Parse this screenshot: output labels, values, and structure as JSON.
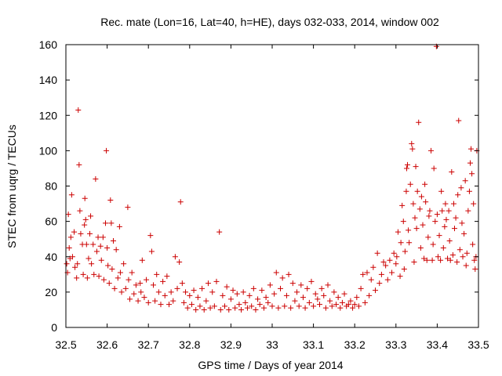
{
  "chart_data": {
    "type": "scatter",
    "title": "Rec. mate (Lon=16, Lat=40, h=HE), days 032-033, 2014, window 002",
    "xlabel": "GPS time / Days of year 2014",
    "ylabel": "STEC from uqrg / TECUs",
    "xlim": [
      32.5,
      33.5
    ],
    "ylim": [
      0,
      160
    ],
    "xticks": [
      32.5,
      32.6,
      32.7,
      32.8,
      32.9,
      33.0,
      33.1,
      33.2,
      33.3,
      33.4,
      33.5
    ],
    "xtick_labels": [
      "32.5",
      "32.6",
      "32.7",
      "32.8",
      "32.9",
      "33",
      "33.1",
      "33.2",
      "33.3",
      "33.4",
      "33.5"
    ],
    "yticks": [
      0,
      20,
      40,
      60,
      80,
      100,
      120,
      140,
      160
    ],
    "ytick_labels": [
      "0",
      "20",
      "40",
      "60",
      "80",
      "100",
      "120",
      "140",
      "160"
    ],
    "grid": false,
    "marker": "+",
    "series": [
      {
        "name": "STEC",
        "color": "#cc0000",
        "points": [
          [
            32.502,
            36
          ],
          [
            32.504,
            31
          ],
          [
            32.506,
            64
          ],
          [
            32.508,
            45
          ],
          [
            32.51,
            39
          ],
          [
            32.512,
            51
          ],
          [
            32.514,
            75
          ],
          [
            32.516,
            40
          ],
          [
            32.52,
            54
          ],
          [
            32.522,
            34
          ],
          [
            32.526,
            28
          ],
          [
            32.528,
            36
          ],
          [
            32.53,
            123
          ],
          [
            32.532,
            92
          ],
          [
            32.534,
            66
          ],
          [
            32.536,
            53
          ],
          [
            32.54,
            47
          ],
          [
            32.542,
            30
          ],
          [
            32.545,
            58
          ],
          [
            32.546,
            73
          ],
          [
            32.548,
            61
          ],
          [
            32.55,
            47
          ],
          [
            32.552,
            28
          ],
          [
            32.555,
            39
          ],
          [
            32.558,
            53
          ],
          [
            32.56,
            63
          ],
          [
            32.562,
            36
          ],
          [
            32.566,
            47
          ],
          [
            32.568,
            30
          ],
          [
            32.572,
            84
          ],
          [
            32.575,
            43
          ],
          [
            32.578,
            51
          ],
          [
            32.58,
            29
          ],
          [
            32.584,
            46
          ],
          [
            32.586,
            38
          ],
          [
            32.59,
            51
          ],
          [
            32.592,
            27
          ],
          [
            32.596,
            59
          ],
          [
            32.598,
            100
          ],
          [
            32.6,
            45
          ],
          [
            32.602,
            35
          ],
          [
            32.605,
            25
          ],
          [
            32.608,
            72
          ],
          [
            32.61,
            59
          ],
          [
            32.612,
            33
          ],
          [
            32.615,
            49
          ],
          [
            32.618,
            22
          ],
          [
            32.622,
            44
          ],
          [
            32.626,
            28
          ],
          [
            32.63,
            57
          ],
          [
            32.632,
            31
          ],
          [
            32.635,
            20
          ],
          [
            32.64,
            36
          ],
          [
            32.645,
            22
          ],
          [
            32.65,
            68
          ],
          [
            32.652,
            27
          ],
          [
            32.655,
            16
          ],
          [
            32.66,
            31
          ],
          [
            32.665,
            19
          ],
          [
            32.67,
            24
          ],
          [
            32.675,
            15
          ],
          [
            32.68,
            25
          ],
          [
            32.682,
            20
          ],
          [
            32.685,
            38
          ],
          [
            32.69,
            17
          ],
          [
            32.695,
            27
          ],
          [
            32.7,
            14
          ],
          [
            32.705,
            52
          ],
          [
            32.708,
            43
          ],
          [
            32.712,
            24
          ],
          [
            32.716,
            15
          ],
          [
            32.72,
            30
          ],
          [
            32.725,
            20
          ],
          [
            32.73,
            13
          ],
          [
            32.735,
            26
          ],
          [
            32.74,
            18
          ],
          [
            32.745,
            29
          ],
          [
            32.75,
            13
          ],
          [
            32.755,
            20
          ],
          [
            32.76,
            15
          ],
          [
            32.765,
            40
          ],
          [
            32.77,
            22
          ],
          [
            32.775,
            37
          ],
          [
            32.778,
            71
          ],
          [
            32.782,
            25
          ],
          [
            32.786,
            14
          ],
          [
            32.79,
            20
          ],
          [
            32.795,
            11
          ],
          [
            32.8,
            18
          ],
          [
            32.805,
            13
          ],
          [
            32.81,
            21
          ],
          [
            32.815,
            10
          ],
          [
            32.82,
            17
          ],
          [
            32.825,
            12
          ],
          [
            32.83,
            22
          ],
          [
            32.835,
            10
          ],
          [
            32.84,
            15
          ],
          [
            32.845,
            25
          ],
          [
            32.85,
            11
          ],
          [
            32.855,
            20
          ],
          [
            32.86,
            12
          ],
          [
            32.865,
            26
          ],
          [
            32.872,
            54
          ],
          [
            32.875,
            10
          ],
          [
            32.88,
            18
          ],
          [
            32.885,
            12
          ],
          [
            32.89,
            23
          ],
          [
            32.895,
            10
          ],
          [
            32.9,
            16
          ],
          [
            32.905,
            21
          ],
          [
            32.91,
            11
          ],
          [
            32.915,
            19
          ],
          [
            32.92,
            13
          ],
          [
            32.925,
            10
          ],
          [
            32.93,
            20
          ],
          [
            32.935,
            14
          ],
          [
            32.94,
            11
          ],
          [
            32.945,
            18
          ],
          [
            32.95,
            12
          ],
          [
            32.955,
            22
          ],
          [
            32.96,
            10
          ],
          [
            32.965,
            16
          ],
          [
            32.97,
            13
          ],
          [
            32.975,
            21
          ],
          [
            32.98,
            11
          ],
          [
            32.985,
            17
          ],
          [
            32.99,
            14
          ],
          [
            32.995,
            24
          ],
          [
            33.0,
            12
          ],
          [
            33.005,
            19
          ],
          [
            33.01,
            31
          ],
          [
            33.015,
            11
          ],
          [
            33.02,
            22
          ],
          [
            33.025,
            28
          ],
          [
            33.03,
            12
          ],
          [
            33.035,
            18
          ],
          [
            33.04,
            30
          ],
          [
            33.045,
            11
          ],
          [
            33.05,
            25
          ],
          [
            33.055,
            15
          ],
          [
            33.06,
            20
          ],
          [
            33.065,
            12
          ],
          [
            33.07,
            24
          ],
          [
            33.075,
            17
          ],
          [
            33.08,
            11
          ],
          [
            33.085,
            22
          ],
          [
            33.09,
            14
          ],
          [
            33.095,
            26
          ],
          [
            33.1,
            12
          ],
          [
            33.105,
            19
          ],
          [
            33.11,
            16
          ],
          [
            33.115,
            13
          ],
          [
            33.12,
            22
          ],
          [
            33.125,
            18
          ],
          [
            33.13,
            11
          ],
          [
            33.135,
            24
          ],
          [
            33.14,
            15
          ],
          [
            33.145,
            12
          ],
          [
            33.15,
            20
          ],
          [
            33.155,
            13
          ],
          [
            33.16,
            17
          ],
          [
            33.165,
            11
          ],
          [
            33.17,
            14
          ],
          [
            33.175,
            19
          ],
          [
            33.18,
            12
          ],
          [
            33.185,
            13
          ],
          [
            33.19,
            15
          ],
          [
            33.195,
            11
          ],
          [
            33.2,
            13
          ],
          [
            33.205,
            17
          ],
          [
            33.21,
            12
          ],
          [
            33.215,
            22
          ],
          [
            33.22,
            30
          ],
          [
            33.225,
            14
          ],
          [
            33.23,
            31
          ],
          [
            33.235,
            18
          ],
          [
            33.24,
            27
          ],
          [
            33.245,
            34
          ],
          [
            33.25,
            21
          ],
          [
            33.255,
            42
          ],
          [
            33.26,
            25
          ],
          [
            33.265,
            30
          ],
          [
            33.27,
            37
          ],
          [
            33.275,
            35
          ],
          [
            33.28,
            27
          ],
          [
            33.285,
            38
          ],
          [
            33.29,
            31
          ],
          [
            33.295,
            42
          ],
          [
            33.3,
            36
          ],
          [
            33.302,
            40
          ],
          [
            33.305,
            54
          ],
          [
            33.31,
            29
          ],
          [
            33.312,
            48
          ],
          [
            33.315,
            69
          ],
          [
            33.318,
            60
          ],
          [
            33.32,
            33
          ],
          [
            33.322,
            43
          ],
          [
            33.325,
            77
          ],
          [
            33.326,
            90
          ],
          [
            33.328,
            92
          ],
          [
            33.33,
            55
          ],
          [
            33.332,
            48
          ],
          [
            33.335,
            81
          ],
          [
            33.338,
            104
          ],
          [
            33.34,
            101
          ],
          [
            33.342,
            70
          ],
          [
            33.344,
            37
          ],
          [
            33.346,
            62
          ],
          [
            33.348,
            91
          ],
          [
            33.35,
            56
          ],
          [
            33.352,
            77
          ],
          [
            33.355,
            116
          ],
          [
            33.358,
            67
          ],
          [
            33.36,
            45
          ],
          [
            33.362,
            74
          ],
          [
            33.365,
            58
          ],
          [
            33.368,
            39
          ],
          [
            33.37,
            81
          ],
          [
            33.372,
            71
          ],
          [
            33.375,
            38
          ],
          [
            33.378,
            51
          ],
          [
            33.38,
            63
          ],
          [
            33.382,
            66
          ],
          [
            33.385,
            100
          ],
          [
            33.388,
            38
          ],
          [
            33.39,
            47
          ],
          [
            33.392,
            90
          ],
          [
            33.395,
            60
          ],
          [
            33.398,
            159
          ],
          [
            33.4,
            64
          ],
          [
            33.402,
            40
          ],
          [
            33.405,
            52
          ],
          [
            33.408,
            38
          ],
          [
            33.41,
            77
          ],
          [
            33.412,
            66
          ],
          [
            33.415,
            45
          ],
          [
            33.418,
            57
          ],
          [
            33.42,
            70
          ],
          [
            33.422,
            61
          ],
          [
            33.425,
            39
          ],
          [
            33.428,
            66
          ],
          [
            33.43,
            49
          ],
          [
            33.432,
            38
          ],
          [
            33.435,
            88
          ],
          [
            33.438,
            41
          ],
          [
            33.44,
            70
          ],
          [
            33.442,
            56
          ],
          [
            33.445,
            62
          ],
          [
            33.448,
            37
          ],
          [
            33.45,
            75
          ],
          [
            33.452,
            117
          ],
          [
            33.455,
            44
          ],
          [
            33.458,
            79
          ],
          [
            33.46,
            59
          ],
          [
            33.462,
            40
          ],
          [
            33.465,
            53
          ],
          [
            33.468,
            83
          ],
          [
            33.47,
            35
          ],
          [
            33.472,
            42
          ],
          [
            33.475,
            66
          ],
          [
            33.478,
            77
          ],
          [
            33.48,
            93
          ],
          [
            33.482,
            101
          ],
          [
            33.484,
            87
          ],
          [
            33.486,
            47
          ],
          [
            33.488,
            70
          ],
          [
            33.49,
            38
          ],
          [
            33.492,
            33
          ],
          [
            33.494,
            40
          ],
          [
            33.496,
            100
          ]
        ]
      }
    ]
  }
}
